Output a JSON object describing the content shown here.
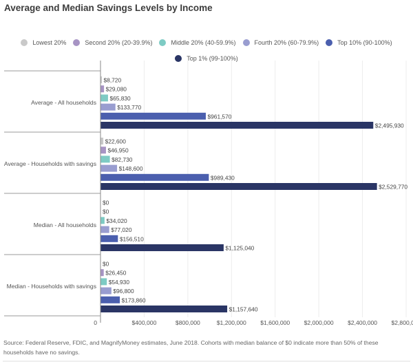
{
  "chart_data": {
    "type": "bar",
    "orientation": "horizontal",
    "title": "Average and Median Savings Levels by Income",
    "xlabel": "",
    "ylabel": "",
    "xlim": [
      0,
      2800000
    ],
    "x_ticks": [
      {
        "value": 0,
        "label": "0"
      },
      {
        "value": 400000,
        "label": "$400,000"
      },
      {
        "value": 800000,
        "label": "$800,000"
      },
      {
        "value": 1200000,
        "label": "$1,200,000"
      },
      {
        "value": 1600000,
        "label": "$1,600,000"
      },
      {
        "value": 2000000,
        "label": "$2,000,000"
      },
      {
        "value": 2400000,
        "label": "$2,400,000"
      },
      {
        "value": 2800000,
        "label": "$2,800,000"
      }
    ],
    "grid": true,
    "legend_position": "top-center",
    "categories": [
      "Average - All households",
      "Average - Households with savings",
      "Median - All households",
      "Median - Households with savings"
    ],
    "series": [
      {
        "name": "Lowest 20%",
        "color": "#c9c9c9",
        "values": [
          8720,
          22600,
          0,
          0
        ],
        "labels": [
          "$8,720",
          "$22,600",
          "$0",
          "$0"
        ]
      },
      {
        "name": "Second 20% (20-39.9%)",
        "color": "#a794c4",
        "values": [
          29080,
          46950,
          0,
          26450
        ],
        "labels": [
          "$29,080",
          "$46,950",
          "$0",
          "$26,450"
        ]
      },
      {
        "name": "Middle 20% (40-59.9%)",
        "color": "#7ecbc4",
        "values": [
          65830,
          82730,
          34020,
          54930
        ],
        "labels": [
          "$65,830",
          "$82,730",
          "$34,020",
          "$54,930"
        ]
      },
      {
        "name": "Fourth 20% (60-79.9%)",
        "color": "#999dd0",
        "values": [
          133770,
          148600,
          77020,
          96800
        ],
        "labels": [
          "$133,770",
          "$148,600",
          "$77,020",
          "$96,800"
        ]
      },
      {
        "name": "Top 10% (90-100%)",
        "color": "#4b5fae",
        "values": [
          961570,
          989430,
          156510,
          173860
        ],
        "labels": [
          "$961,570",
          "$989,430",
          "$156,510",
          "$173,860"
        ]
      },
      {
        "name": "Top 1% (99-100%)",
        "color": "#2a3565",
        "values": [
          2495930,
          2529770,
          1125040,
          1157640
        ],
        "labels": [
          "$2,495,930",
          "$2,529,770",
          "$1,125,040",
          "$1,157,640"
        ]
      }
    ],
    "source_note": "Source: Federal Reserve, FDIC, and MagnifyMoney estimates, June 2018. Cohorts with median balance of $0 indicate more than 50% of these households have no savings."
  }
}
